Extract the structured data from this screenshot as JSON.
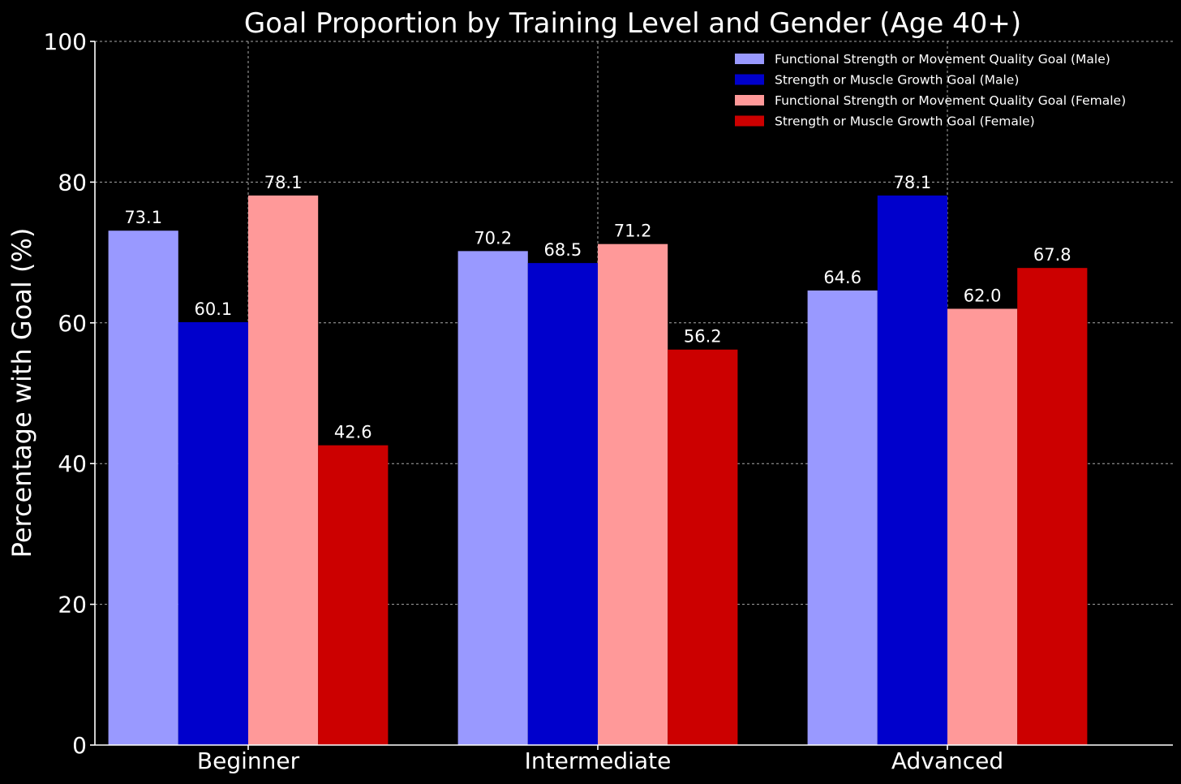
{
  "chart_data": {
    "type": "bar",
    "title": "Goal Proportion by Training Level and Gender (Age 40+)",
    "xlabel": "",
    "ylabel": "Percentage with Goal (%)",
    "ylim": [
      0,
      100
    ],
    "yticks": [
      0,
      20,
      40,
      60,
      80,
      100
    ],
    "grid": true,
    "legend_position": "top-right",
    "categories": [
      "Beginner",
      "Intermediate",
      "Advanced"
    ],
    "series": [
      {
        "name": "Functional Strength or Movement Quality Goal (Male)",
        "color": "#9999ff",
        "values": [
          73.1,
          70.2,
          64.6
        ]
      },
      {
        "name": "Strength or Muscle Growth Goal (Male)",
        "color": "#0000cc",
        "values": [
          60.1,
          68.5,
          78.1
        ]
      },
      {
        "name": "Functional Strength or Movement Quality Goal (Female)",
        "color": "#ff9999",
        "values": [
          78.1,
          71.2,
          62.0
        ]
      },
      {
        "name": "Strength or Muscle Growth Goal (Female)",
        "color": "#cc0000",
        "values": [
          42.6,
          56.2,
          67.8
        ]
      }
    ],
    "background_color": "#000000",
    "text_color": "#ffffff"
  }
}
